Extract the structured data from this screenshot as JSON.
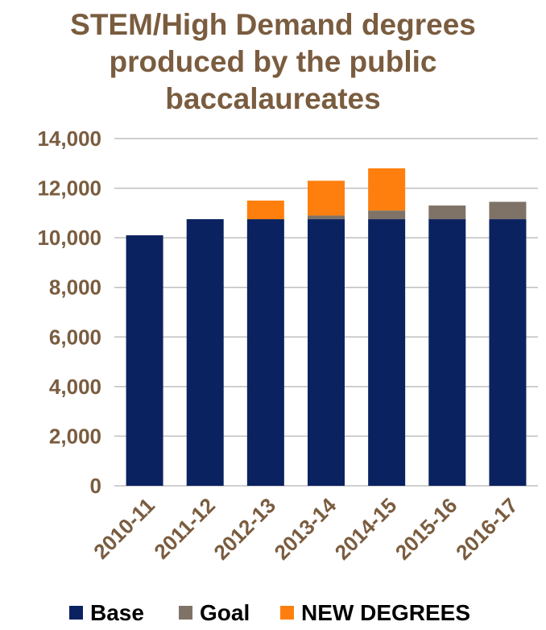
{
  "chart_data": {
    "type": "bar",
    "stacked": true,
    "title_lines": [
      "STEM/High Demand degrees",
      "produced by the public",
      "baccalaureates"
    ],
    "categories": [
      "2010-11",
      "2011-12",
      "2012-13",
      "2013-14",
      "2014-15",
      "2015-16",
      "2016-17"
    ],
    "series": [
      {
        "name": "Base",
        "color": "#0b2260",
        "values": [
          10100,
          10750,
          10750,
          10750,
          10750,
          10750,
          10750
        ]
      },
      {
        "name": "Goal",
        "color": "#7f7367",
        "values": [
          0,
          0,
          0,
          150,
          350,
          550,
          700
        ]
      },
      {
        "name": "NEW DEGREES",
        "color": "#ff7f0e",
        "values": [
          0,
          0,
          750,
          1400,
          1700,
          0,
          0
        ]
      }
    ],
    "y_ticks": [
      "0",
      "2,000",
      "4,000",
      "6,000",
      "8,000",
      "10,000",
      "12,000",
      "14,000"
    ],
    "ylim": [
      0,
      14000
    ],
    "grid": true,
    "legend_position": "bottom",
    "text_color": "#7a5c3f"
  }
}
